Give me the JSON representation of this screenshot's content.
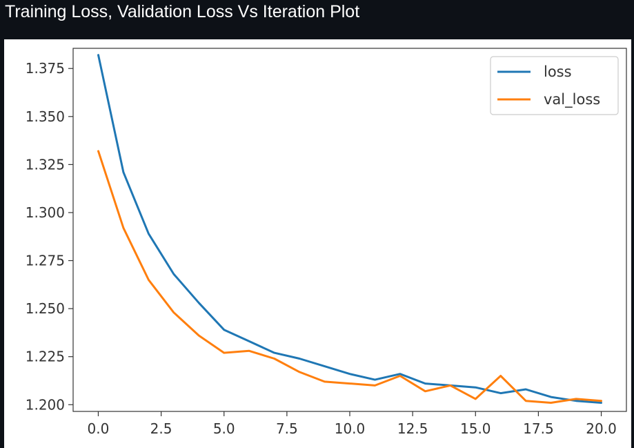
{
  "page": {
    "heading": "Training Loss, Validation Loss Vs Iteration Plot"
  },
  "chart_data": {
    "type": "line",
    "title": "",
    "xlabel": "",
    "ylabel": "",
    "x": [
      0,
      1,
      2,
      3,
      4,
      5,
      6,
      7,
      8,
      9,
      10,
      11,
      12,
      13,
      14,
      15,
      16,
      17,
      18,
      19,
      20
    ],
    "series": [
      {
        "name": "loss",
        "color": "#1f77b4",
        "values": [
          1.382,
          1.321,
          1.289,
          1.268,
          1.253,
          1.239,
          1.233,
          1.227,
          1.224,
          1.22,
          1.216,
          1.213,
          1.216,
          1.211,
          1.21,
          1.209,
          1.206,
          1.208,
          1.204,
          1.202,
          1.201
        ]
      },
      {
        "name": "val_loss",
        "color": "#ff7f0e",
        "values": [
          1.332,
          1.292,
          1.265,
          1.248,
          1.236,
          1.227,
          1.228,
          1.224,
          1.217,
          1.212,
          1.211,
          1.21,
          1.215,
          1.207,
          1.21,
          1.203,
          1.215,
          1.202,
          1.201,
          1.203,
          1.202
        ]
      }
    ],
    "xlim": [
      -1.0,
      21.0
    ],
    "ylim": [
      1.1965,
      1.3855
    ],
    "xticks": [
      0.0,
      2.5,
      5.0,
      7.5,
      10.0,
      12.5,
      15.0,
      17.5,
      20.0
    ],
    "xtick_labels": [
      "0.0",
      "2.5",
      "5.0",
      "7.5",
      "10.0",
      "12.5",
      "15.0",
      "17.5",
      "20.0"
    ],
    "yticks": [
      1.2,
      1.225,
      1.25,
      1.275,
      1.3,
      1.325,
      1.35,
      1.375
    ],
    "ytick_labels": [
      "1.200",
      "1.225",
      "1.250",
      "1.275",
      "1.300",
      "1.325",
      "1.350",
      "1.375"
    ],
    "grid": false,
    "legend_position": "top-right"
  }
}
